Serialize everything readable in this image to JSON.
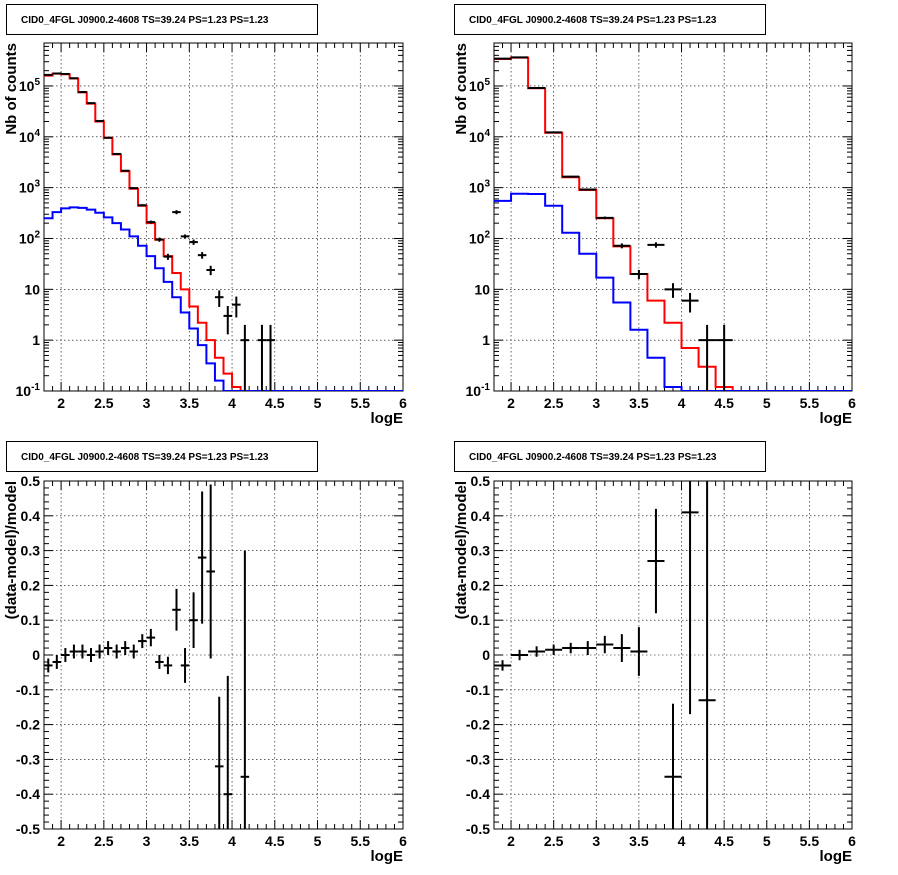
{
  "chart_data": [
    {
      "type": "step-histogram",
      "title": "CID0_4FGL J0900.2-4608 TS=39.24 PS=1.23 PS=1.23",
      "xlabel": "logE",
      "ylabel": "Nb of counts",
      "xlim": [
        1.8,
        6
      ],
      "ylim": [
        0.1,
        700000
      ],
      "yscale": "log",
      "grid": true,
      "x_ticks": [
        "2",
        "2.5",
        "3",
        "3.5",
        "4",
        "4.5",
        "5",
        "5.5",
        "6"
      ],
      "y_ticks": [
        "10^{-1}",
        "1",
        "10",
        "10^{2}",
        "10^{3}",
        "10^{4}",
        "10^{5}"
      ],
      "bin_width": 0.1,
      "bin_edges_start": 1.8,
      "series": [
        {
          "color": "#ff0000",
          "values": [
            160000,
            175000,
            170000,
            140000,
            75000,
            45000,
            20000,
            9500,
            4500,
            2100,
            950,
            440,
            200,
            95,
            45,
            21,
            10,
            4.6,
            2.2,
            1.0,
            0.45,
            0.22,
            0.12,
            0.1,
            0.1,
            0.1,
            0.1,
            0.1,
            0.1,
            0.1,
            0.1,
            0.1,
            0.1,
            0.1,
            0.1,
            0.1,
            0.1,
            0.1,
            0.1,
            0.1,
            0.1,
            0.1
          ]
        },
        {
          "color": "#0000ff",
          "values": [
            250,
            330,
            390,
            410,
            400,
            370,
            320,
            260,
            200,
            150,
            110,
            72,
            45,
            26,
            14,
            7,
            3.5,
            1.7,
            0.8,
            0.35,
            0.16,
            0.1,
            0.1,
            0.1,
            0.1,
            0.1,
            0.1,
            0.1,
            0.1,
            0.1,
            0.1,
            0.1,
            0.1,
            0.1,
            0.1,
            0.1,
            0.1,
            0.1,
            0.1,
            0.1,
            0.1,
            0.1
          ]
        }
      ],
      "points": [
        {
          "x": 1.85,
          "y": 165000,
          "ylo": 164000,
          "yhi": 166000
        },
        {
          "x": 1.95,
          "y": 176000,
          "ylo": 175000,
          "yhi": 177000
        },
        {
          "x": 2.05,
          "y": 172000,
          "ylo": 171000,
          "yhi": 173000
        },
        {
          "x": 2.15,
          "y": 142000,
          "ylo": 141000,
          "yhi": 143000
        },
        {
          "x": 2.25,
          "y": 76000,
          "ylo": 75500,
          "yhi": 76500
        },
        {
          "x": 2.35,
          "y": 46000,
          "ylo": 45500,
          "yhi": 46500
        },
        {
          "x": 2.45,
          "y": 20500,
          "ylo": 20300,
          "yhi": 20700
        },
        {
          "x": 2.55,
          "y": 9600,
          "ylo": 9500,
          "yhi": 9700
        },
        {
          "x": 2.65,
          "y": 4600,
          "ylo": 4550,
          "yhi": 4650
        },
        {
          "x": 2.75,
          "y": 2150,
          "ylo": 2100,
          "yhi": 2200
        },
        {
          "x": 2.85,
          "y": 980,
          "ylo": 950,
          "yhi": 1010
        },
        {
          "x": 2.95,
          "y": 450,
          "ylo": 430,
          "yhi": 470
        },
        {
          "x": 3.05,
          "y": 210,
          "ylo": 195,
          "yhi": 225
        },
        {
          "x": 3.15,
          "y": 95,
          "ylo": 86,
          "yhi": 104
        },
        {
          "x": 3.25,
          "y": 44,
          "ylo": 38,
          "yhi": 50
        },
        {
          "x": 3.35,
          "y": 330,
          "ylo": 300,
          "yhi": 360
        },
        {
          "x": 3.45,
          "y": 110,
          "ylo": 100,
          "yhi": 120
        },
        {
          "x": 3.55,
          "y": 85,
          "ylo": 75,
          "yhi": 95
        },
        {
          "x": 3.65,
          "y": 47,
          "ylo": 40,
          "yhi": 54
        },
        {
          "x": 3.75,
          "y": 24,
          "ylo": 19,
          "yhi": 29
        },
        {
          "x": 3.85,
          "y": 7,
          "ylo": 4.5,
          "yhi": 9.5
        },
        {
          "x": 3.95,
          "y": 3,
          "ylo": 1.3,
          "yhi": 4.7
        },
        {
          "x": 4.05,
          "y": 5,
          "ylo": 2.8,
          "yhi": 7.2
        },
        {
          "x": 4.15,
          "y": 1,
          "ylo": 0.1,
          "yhi": 2
        },
        {
          "x": 4.35,
          "y": 1,
          "ylo": 0.1,
          "yhi": 2
        },
        {
          "x": 4.45,
          "y": 1,
          "ylo": 0.1,
          "yhi": 2
        }
      ]
    },
    {
      "type": "step-histogram",
      "title": "CID0_4FGL J0900.2-4608 TS=39.24 PS=1.23 PS=1.23",
      "xlabel": "logE",
      "ylabel": "Nb of counts",
      "xlim": [
        1.8,
        6
      ],
      "ylim": [
        0.1,
        700000
      ],
      "yscale": "log",
      "grid": true,
      "x_ticks": [
        "2",
        "2.5",
        "3",
        "3.5",
        "4",
        "4.5",
        "5",
        "5.5",
        "6"
      ],
      "y_ticks": [
        "10^{-1}",
        "1",
        "10",
        "10^{2}",
        "10^{3}",
        "10^{4}",
        "10^{5}"
      ],
      "bin_width": 0.2,
      "bin_edges_start": 1.8,
      "series": [
        {
          "color": "#ff0000",
          "values": [
            340000,
            360000,
            90000,
            12000,
            1600,
            900,
            250,
            70,
            20,
            6,
            2.2,
            0.7,
            0.3,
            0.12,
            0.1,
            0.1,
            0.1,
            0.1,
            0.1,
            0.1,
            0.1
          ]
        },
        {
          "color": "#0000ff",
          "values": [
            550,
            760,
            750,
            440,
            130,
            50,
            17,
            5.5,
            1.6,
            0.45,
            0.12,
            0.1,
            0.1,
            0.1,
            0.1,
            0.1,
            0.1,
            0.1,
            0.1,
            0.1,
            0.1
          ]
        }
      ],
      "points": [
        {
          "x": 1.9,
          "y": 345000,
          "ylo": 344000,
          "yhi": 346000
        },
        {
          "x": 2.1,
          "y": 365000,
          "ylo": 364000,
          "yhi": 366000
        },
        {
          "x": 2.3,
          "y": 91000,
          "ylo": 90500,
          "yhi": 91500
        },
        {
          "x": 2.5,
          "y": 12200,
          "ylo": 12000,
          "yhi": 12400
        },
        {
          "x": 2.7,
          "y": 1650,
          "ylo": 1600,
          "yhi": 1700
        },
        {
          "x": 2.9,
          "y": 920,
          "ylo": 880,
          "yhi": 960
        },
        {
          "x": 3.1,
          "y": 255,
          "ylo": 240,
          "yhi": 270
        },
        {
          "x": 3.3,
          "y": 72,
          "ylo": 64,
          "yhi": 80
        },
        {
          "x": 3.5,
          "y": 20,
          "ylo": 16,
          "yhi": 24
        },
        {
          "x": 3.7,
          "y": 75,
          "ylo": 66,
          "yhi": 84
        },
        {
          "x": 3.9,
          "y": 10,
          "ylo": 6.8,
          "yhi": 13.2
        },
        {
          "x": 4.1,
          "y": 6,
          "ylo": 3.5,
          "yhi": 8.5
        },
        {
          "x": 4.3,
          "y": 1,
          "ylo": 0.1,
          "yhi": 2
        },
        {
          "x": 4.5,
          "y": 1,
          "ylo": 0.1,
          "yhi": 2
        }
      ]
    },
    {
      "type": "scatter-errorbar",
      "title": "CID0_4FGL J0900.2-4608 TS=39.24 PS=1.23 PS=1.23",
      "xlabel": "logE",
      "ylabel": "(data-model)/model",
      "xlim": [
        1.8,
        6
      ],
      "ylim": [
        -0.5,
        0.5
      ],
      "grid": true,
      "x_ticks": [
        "2",
        "2.5",
        "3",
        "3.5",
        "4",
        "4.5",
        "5",
        "5.5",
        "6"
      ],
      "y_ticks": [
        "-0.5",
        "-0.4",
        "-0.3",
        "-0.2",
        "-0.1",
        "0",
        "0.1",
        "0.2",
        "0.3",
        "0.4",
        "0.5"
      ],
      "x_halfwidth": 0.05,
      "points": [
        {
          "x": 1.85,
          "y": -0.03,
          "err": 0.02
        },
        {
          "x": 1.95,
          "y": -0.02,
          "err": 0.02
        },
        {
          "x": 2.05,
          "y": 0.0,
          "err": 0.02
        },
        {
          "x": 2.15,
          "y": 0.01,
          "err": 0.02
        },
        {
          "x": 2.25,
          "y": 0.01,
          "err": 0.02
        },
        {
          "x": 2.35,
          "y": 0.0,
          "err": 0.02
        },
        {
          "x": 2.45,
          "y": 0.01,
          "err": 0.02
        },
        {
          "x": 2.55,
          "y": 0.02,
          "err": 0.02
        },
        {
          "x": 2.65,
          "y": 0.01,
          "err": 0.02
        },
        {
          "x": 2.75,
          "y": 0.02,
          "err": 0.02
        },
        {
          "x": 2.85,
          "y": 0.01,
          "err": 0.02
        },
        {
          "x": 2.95,
          "y": 0.04,
          "err": 0.02
        },
        {
          "x": 3.05,
          "y": 0.05,
          "err": 0.025
        },
        {
          "x": 3.15,
          "y": -0.02,
          "err": 0.02
        },
        {
          "x": 3.25,
          "y": -0.03,
          "err": 0.025
        },
        {
          "x": 3.35,
          "y": 0.13,
          "err": 0.06
        },
        {
          "x": 3.45,
          "y": -0.03,
          "err": 0.05
        },
        {
          "x": 3.55,
          "y": 0.1,
          "err": 0.08
        },
        {
          "x": 3.65,
          "y": 0.28,
          "err": 0.19
        },
        {
          "x": 3.75,
          "y": 0.24,
          "err": 0.25
        },
        {
          "x": 3.85,
          "y": -0.32,
          "err": 0.2
        },
        {
          "x": 3.95,
          "y": -0.4,
          "err": 0.34
        },
        {
          "x": 4.15,
          "y": -0.35,
          "err": 0.65
        }
      ]
    },
    {
      "type": "scatter-errorbar",
      "title": "CID0_4FGL J0900.2-4608 TS=39.24 PS=1.23 PS=1.23",
      "xlabel": "logE",
      "ylabel": "(data-model)/model",
      "xlim": [
        1.8,
        6
      ],
      "ylim": [
        -0.5,
        0.5
      ],
      "grid": true,
      "x_ticks": [
        "2",
        "2.5",
        "3",
        "3.5",
        "4",
        "4.5",
        "5",
        "5.5",
        "6"
      ],
      "y_ticks": [
        "-0.5",
        "-0.4",
        "-0.3",
        "-0.2",
        "-0.1",
        "0",
        "0.1",
        "0.2",
        "0.3",
        "0.4",
        "0.5"
      ],
      "x_halfwidth": 0.1,
      "points": [
        {
          "x": 1.9,
          "y": -0.03,
          "err": 0.015
        },
        {
          "x": 2.1,
          "y": 0.0,
          "err": 0.015
        },
        {
          "x": 2.3,
          "y": 0.01,
          "err": 0.015
        },
        {
          "x": 2.5,
          "y": 0.015,
          "err": 0.015
        },
        {
          "x": 2.7,
          "y": 0.02,
          "err": 0.015
        },
        {
          "x": 2.9,
          "y": 0.02,
          "err": 0.02
        },
        {
          "x": 3.1,
          "y": 0.03,
          "err": 0.025
        },
        {
          "x": 3.3,
          "y": 0.02,
          "err": 0.04
        },
        {
          "x": 3.5,
          "y": 0.01,
          "err": 0.07
        },
        {
          "x": 3.7,
          "y": 0.27,
          "err": 0.15
        },
        {
          "x": 3.9,
          "y": -0.35,
          "err": 0.21
        },
        {
          "x": 4.1,
          "y": 0.41,
          "err": 0.58
        },
        {
          "x": 4.3,
          "y": -0.13,
          "err": 0.63
        }
      ]
    }
  ]
}
